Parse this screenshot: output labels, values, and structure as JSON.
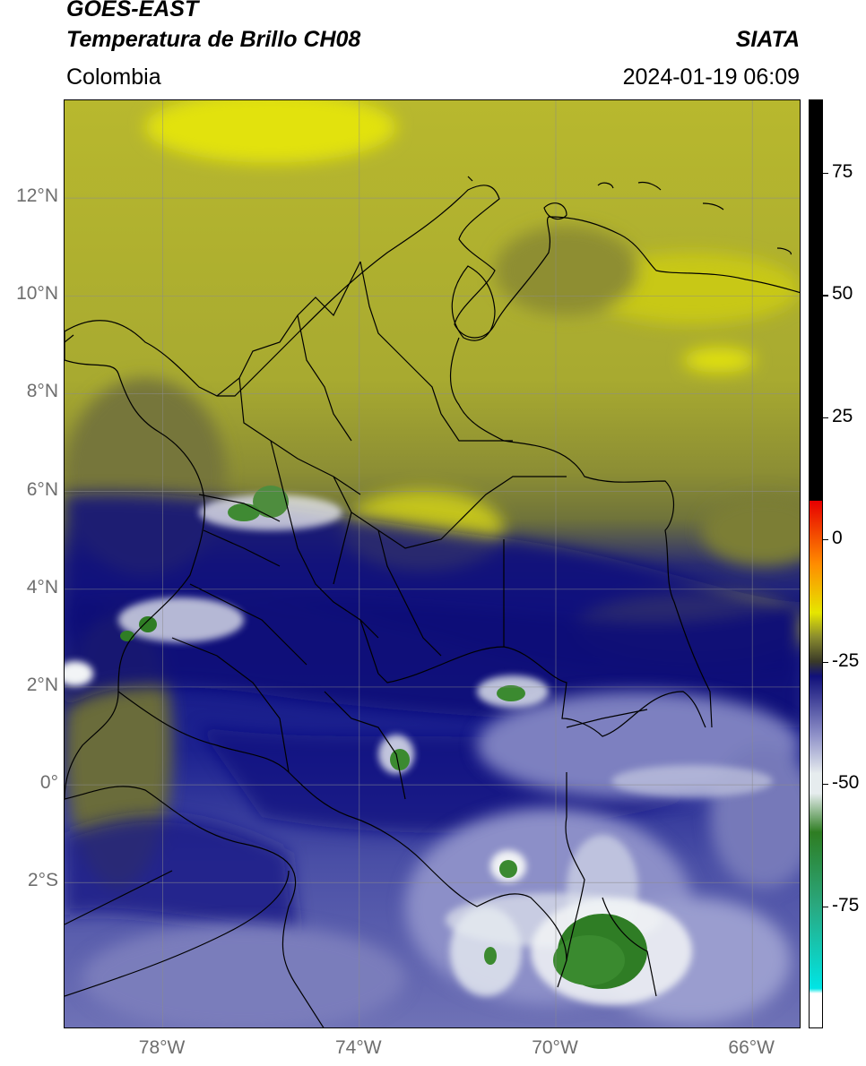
{
  "header": {
    "title_line1": "GOES-EAST",
    "title_line2": "Temperatura de Brillo CH08",
    "organization": "SIATA",
    "region": "Colombia",
    "timestamp": "2024-01-19 06:09"
  },
  "map": {
    "lon_range": [
      -80,
      -65
    ],
    "lat_range": [
      -5,
      14
    ],
    "grid": true,
    "lat_ticks": [
      "12°N",
      "10°N",
      "8°N",
      "6°N",
      "4°N",
      "2°N",
      "0°",
      "2°S"
    ],
    "lat_tick_values": [
      12,
      10,
      8,
      6,
      4,
      2,
      0,
      -2
    ],
    "lon_ticks": [
      "78°W",
      "74°W",
      "70°W",
      "66°W"
    ],
    "lon_tick_values": [
      -78,
      -74,
      -70,
      -66
    ]
  },
  "colorbar": {
    "range": [
      -100,
      90
    ],
    "tick_labels": [
      "75",
      "50",
      "25",
      "0",
      "-25",
      "-50",
      "-75"
    ],
    "tick_values": [
      75,
      50,
      25,
      0,
      -25,
      -50,
      -75
    ],
    "colors": {
      "cold_white": "#ffffff",
      "cyan": "#00e5e5",
      "teal": "#2aa87f",
      "green": "#2e7d22",
      "light": "#e6ecee",
      "lavender": "#8e90c8",
      "navy": "#10107a",
      "olive_dark": "#3a3a28",
      "olive": "#8a8c2e",
      "yellow": "#e6e600",
      "orange": "#ff8c00",
      "red": "#e60000",
      "black": "#000000"
    }
  }
}
